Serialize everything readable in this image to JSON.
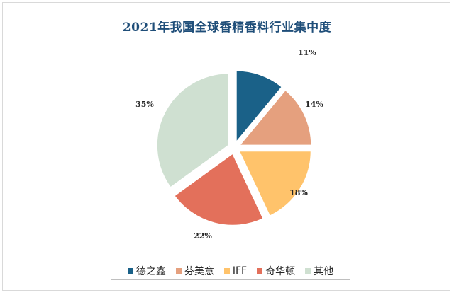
{
  "chart_data": {
    "type": "pie",
    "title": "2021年我国全球香精香料行业集中度",
    "slices": [
      {
        "name": "德之鑫",
        "value": 11,
        "label": "11%",
        "color": "#1a6188"
      },
      {
        "name": "芬美意",
        "value": 14,
        "label": "14%",
        "color": "#e5a07e"
      },
      {
        "name": "IFF",
        "value": 18,
        "label": "18%",
        "color": "#ffc36b"
      },
      {
        "name": "奇华顿",
        "value": 22,
        "label": "22%",
        "color": "#e3705b"
      },
      {
        "name": "其他",
        "value": 35,
        "label": "35%",
        "color": "#cfe0d1"
      }
    ],
    "legend_position": "bottom",
    "exploded": true
  }
}
